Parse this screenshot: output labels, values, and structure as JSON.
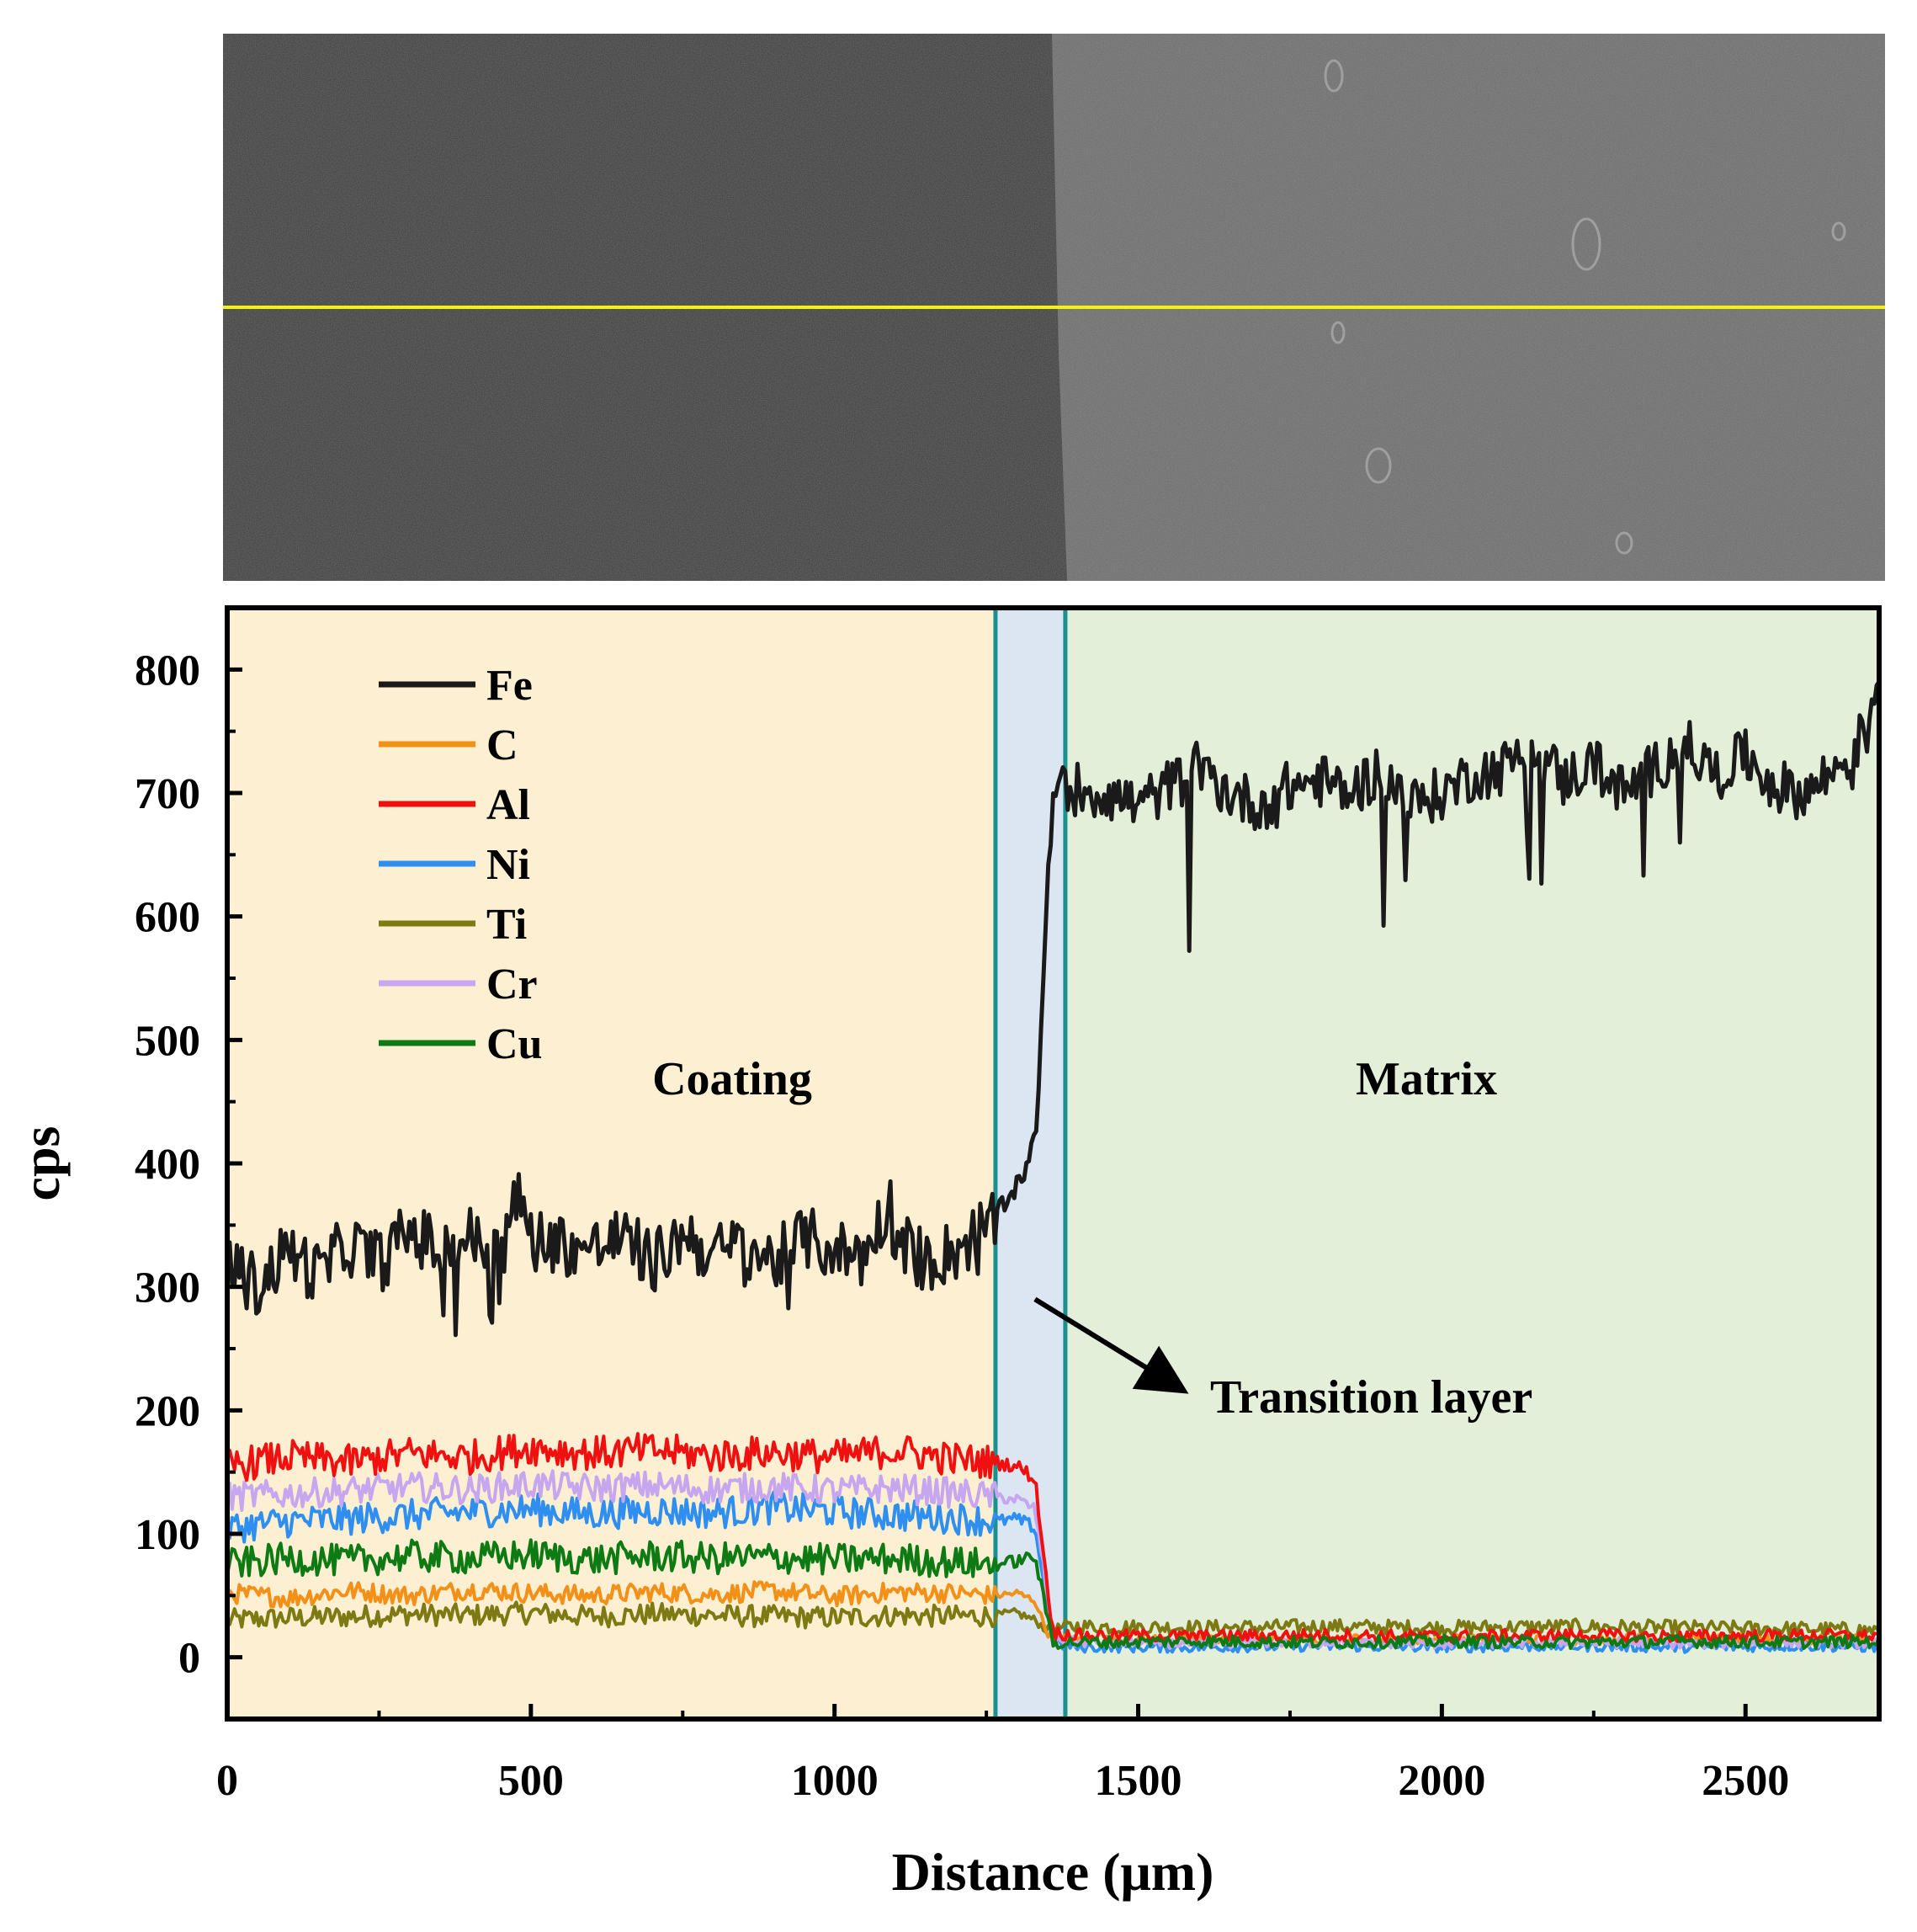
{
  "chart_data": {
    "type": "line",
    "xlabel": "Distance (μm)",
    "ylabel": "cps",
    "xlim": [
      0,
      2720
    ],
    "ylim": [
      -50,
      850
    ],
    "x_ticks": [
      "0",
      "500",
      "1000",
      "1500",
      "2000",
      "2500"
    ],
    "y_ticks": [
      "0",
      "100",
      "200",
      "300",
      "400",
      "500",
      "600",
      "700",
      "800"
    ],
    "legend_position": "top-left",
    "regions": [
      {
        "label": "Coating",
        "x_range": [
          0,
          1265
        ],
        "color": "#fcefd2"
      },
      {
        "label": "",
        "x_range": [
          1265,
          1380
        ],
        "color": "#dce6f2"
      },
      {
        "label": "Matrix",
        "x_range": [
          1380,
          2720
        ],
        "color": "#e3efd9"
      }
    ],
    "boundary_lines": [
      1265,
      1380
    ],
    "boundary_color": "#1a9090",
    "annotation": {
      "text": "Transition layer",
      "arrow_from": [
        1330,
        290
      ],
      "arrow_to": [
        1580,
        215
      ]
    },
    "series": [
      {
        "name": "Fe",
        "color": "#1a1a1a",
        "x": [
          0,
          50,
          100,
          150,
          200,
          250,
          300,
          350,
          400,
          450,
          480,
          500,
          550,
          600,
          650,
          700,
          730,
          750,
          800,
          850,
          900,
          950,
          1000,
          1050,
          1090,
          1100,
          1150,
          1200,
          1240,
          1265,
          1280,
          1300,
          1320,
          1330,
          1340,
          1350,
          1360,
          1370,
          1380,
          1450,
          1500,
          1550,
          1600,
          1650,
          1700,
          1750,
          1800,
          1850,
          1900,
          1950,
          2000,
          2050,
          2100,
          2150,
          2200,
          2250,
          2300,
          2350,
          2400,
          2450,
          2500,
          2550,
          2600,
          2650,
          2700,
          2720
        ],
        "y": [
          320,
          300,
          330,
          310,
          335,
          320,
          345,
          330,
          340,
          325,
          375,
          340,
          335,
          330,
          340,
          320,
          330,
          345,
          325,
          335,
          320,
          340,
          330,
          325,
          370,
          340,
          320,
          330,
          345,
          355,
          365,
          380,
          400,
          420,
          500,
          620,
          690,
          720,
          705,
          700,
          690,
          705,
          720,
          700,
          690,
          705,
          710,
          700,
          720,
          690,
          700,
          715,
          720,
          740,
          710,
          725,
          700,
          720,
          740,
          715,
          730,
          705,
          700,
          720,
          750,
          800
        ]
      },
      {
        "name": "C",
        "color": "#f39018",
        "x": [
          0,
          100,
          200,
          300,
          400,
          500,
          600,
          700,
          800,
          900,
          1000,
          1100,
          1200,
          1265,
          1300,
          1330,
          1350,
          1370,
          1400,
          1600,
          1800,
          2000,
          2200,
          2400,
          2600,
          2720
        ],
        "y": [
          52,
          48,
          54,
          50,
          55,
          52,
          50,
          53,
          51,
          54,
          49,
          53,
          52,
          50,
          52,
          46,
          20,
          15,
          14,
          15,
          14,
          15,
          14,
          15,
          14,
          15
        ]
      },
      {
        "name": "Al",
        "color": "#f01010",
        "x": [
          0,
          100,
          200,
          300,
          400,
          500,
          600,
          700,
          800,
          900,
          1000,
          1100,
          1200,
          1265,
          1300,
          1330,
          1345,
          1360,
          1400,
          1600,
          1800,
          2000,
          2200,
          2400,
          2600,
          2720
        ],
        "y": [
          155,
          162,
          158,
          165,
          162,
          170,
          165,
          168,
          163,
          166,
          162,
          168,
          160,
          158,
          155,
          145,
          80,
          20,
          18,
          17,
          18,
          17,
          18,
          17,
          18,
          17
        ]
      },
      {
        "name": "Ni",
        "color": "#2f8ff0",
        "x": [
          0,
          100,
          200,
          300,
          400,
          500,
          600,
          700,
          800,
          900,
          1000,
          1100,
          1200,
          1265,
          1300,
          1330,
          1345,
          1360,
          1400,
          1600,
          1800,
          2000,
          2200,
          2400,
          2600,
          2720
        ],
        "y": [
          105,
          110,
          112,
          115,
          118,
          120,
          116,
          119,
          117,
          121,
          118,
          115,
          113,
          110,
          112,
          105,
          60,
          12,
          8,
          8,
          9,
          8,
          9,
          8,
          9,
          8
        ]
      },
      {
        "name": "Ti",
        "color": "#7d7a14",
        "x": [
          0,
          100,
          200,
          300,
          400,
          500,
          600,
          700,
          800,
          900,
          1000,
          1100,
          1200,
          1265,
          1300,
          1330,
          1350,
          1370,
          1400,
          1600,
          1800,
          2000,
          2200,
          2400,
          2600,
          2720
        ],
        "y": [
          30,
          32,
          33,
          35,
          34,
          36,
          33,
          35,
          34,
          33,
          32,
          34,
          33,
          34,
          36,
          30,
          22,
          24,
          25,
          24,
          25,
          24,
          25,
          24,
          23,
          22
        ]
      },
      {
        "name": "Cr",
        "color": "#c7a6f0",
        "x": [
          0,
          100,
          200,
          300,
          400,
          500,
          600,
          700,
          800,
          900,
          1000,
          1100,
          1200,
          1265,
          1300,
          1330,
          1345,
          1360,
          1400,
          1600,
          1800,
          2000,
          2200,
          2400,
          2600,
          2720
        ],
        "y": [
          130,
          132,
          135,
          138,
          136,
          140,
          137,
          139,
          136,
          138,
          135,
          137,
          133,
          130,
          128,
          120,
          70,
          14,
          12,
          11,
          12,
          11,
          12,
          11,
          12,
          11
        ]
      },
      {
        "name": "Cu",
        "color": "#0e7a14",
        "x": [
          0,
          100,
          200,
          300,
          400,
          500,
          600,
          700,
          800,
          900,
          1000,
          1100,
          1200,
          1265,
          1300,
          1330,
          1345,
          1360,
          1400,
          1600,
          1800,
          2000,
          2200,
          2400,
          2600,
          2720
        ],
        "y": [
          75,
          80,
          78,
          82,
          80,
          83,
          79,
          82,
          80,
          81,
          79,
          80,
          77,
          75,
          78,
          82,
          45,
          12,
          12,
          13,
          12,
          13,
          12,
          13,
          12,
          13
        ]
      }
    ]
  }
}
